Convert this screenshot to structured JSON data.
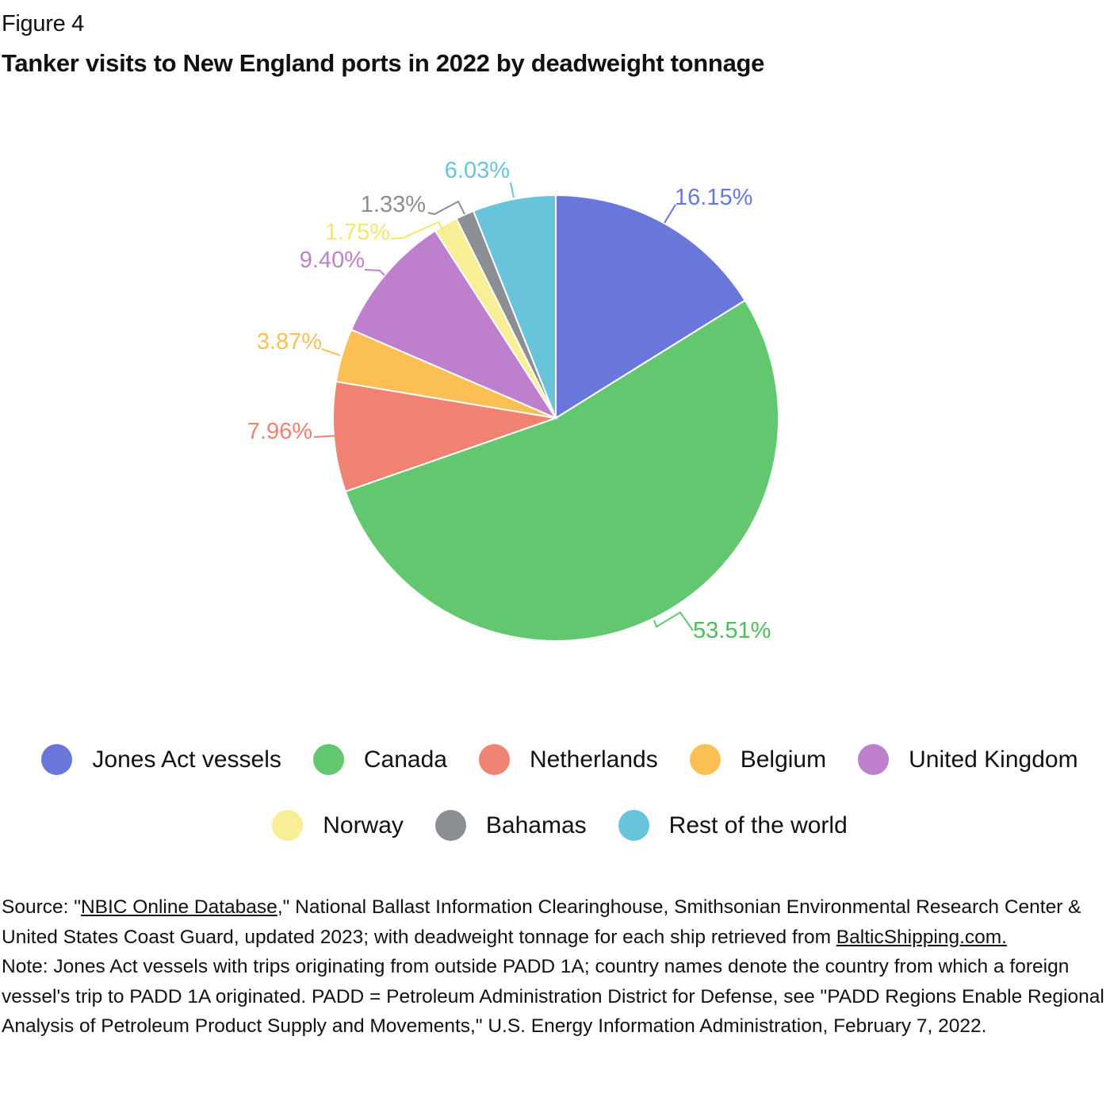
{
  "figure_label": "Figure 4",
  "title": "Tanker visits to New England ports in 2022 by deadweight tonnage",
  "chart_data": {
    "type": "pie",
    "title": "Tanker visits to New England ports in 2022 by deadweight tonnage",
    "unit": "%",
    "start_angle": "12 o'clock, clockwise",
    "categories": [
      "Jones Act vessels",
      "Canada",
      "Netherlands",
      "Belgium",
      "United Kingdom",
      "Norway",
      "Bahamas",
      "Rest of the world"
    ],
    "values": [
      16.15,
      53.51,
      7.96,
      3.87,
      9.4,
      1.75,
      1.33,
      6.03
    ],
    "value_labels": [
      "16.15%",
      "53.51%",
      "7.96%",
      "3.87%",
      "9.40%",
      "1.75%",
      "1.33%",
      "6.03%"
    ],
    "colors": [
      "#6877d9",
      "#63c770",
      "#f08272",
      "#fbbf53",
      "#be80cd",
      "#f8ee95",
      "#8b8f93",
      "#67c4da"
    ],
    "legend_position": "bottom"
  },
  "legend": {
    "row1": [
      {
        "label": "Jones Act vessels",
        "color": "#6877d9"
      },
      {
        "label": "Canada",
        "color": "#63c770"
      },
      {
        "label": "Netherlands",
        "color": "#f08272"
      },
      {
        "label": "Belgium",
        "color": "#fbbf53"
      },
      {
        "label": "United Kingdom",
        "color": "#be80cd"
      }
    ],
    "row2": [
      {
        "label": "Norway",
        "color": "#f8ee95"
      },
      {
        "label": "Bahamas",
        "color": "#8b8f93"
      },
      {
        "label": "Rest of the world",
        "color": "#67c4da"
      }
    ]
  },
  "source": {
    "prefix": "Source: \"",
    "link1": "NBIC Online Database",
    "middle": ",\" National Ballast Information Clearinghouse, Smithsonian Environmental Research Center & United States Coast Guard, updated 2023; with deadweight tonnage for each ship retrieved from ",
    "link2": "BalticShipping.com."
  },
  "note": "Note: Jones Act vessels with trips originating from outside PADD 1A; country names denote the country from which a foreign vessel's trip to PADD 1A originated. PADD = Petroleum Administration District for Defense, see \"PADD Regions Enable Regional Analysis of Petroleum Product Supply and Movements,\" U.S. Energy Information Administration, February 7, 2022."
}
